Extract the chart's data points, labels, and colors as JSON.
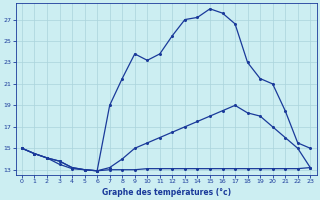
{
  "title": "Graphe des températures (°c)",
  "bg_color": "#cceef2",
  "grid_color": "#aad4dc",
  "line_color": "#1a3a9a",
  "xlim": [
    -0.5,
    23.5
  ],
  "ylim": [
    12.5,
    28.5
  ],
  "yticks": [
    13,
    15,
    17,
    19,
    21,
    23,
    25,
    27
  ],
  "xticks": [
    0,
    1,
    2,
    3,
    4,
    5,
    6,
    7,
    8,
    9,
    10,
    11,
    12,
    13,
    14,
    15,
    16,
    17,
    18,
    19,
    20,
    21,
    22,
    23
  ],
  "line1_x": [
    0,
    1,
    2,
    3,
    4,
    5,
    6,
    7,
    8,
    9,
    10,
    11,
    12,
    13,
    14,
    15,
    16,
    17,
    18,
    19,
    20,
    21,
    22,
    23
  ],
  "line1_y": [
    15.0,
    14.5,
    14.1,
    13.8,
    13.2,
    13.0,
    12.9,
    13.0,
    13.0,
    13.0,
    13.1,
    13.1,
    13.1,
    13.1,
    13.1,
    13.1,
    13.1,
    13.1,
    13.1,
    13.1,
    13.1,
    13.1,
    13.1,
    13.2
  ],
  "line2_x": [
    0,
    1,
    2,
    3,
    4,
    5,
    6,
    7,
    8,
    9,
    10,
    11,
    12,
    13,
    14,
    15,
    16,
    17,
    18,
    19,
    20,
    21,
    22,
    23
  ],
  "line2_y": [
    15.0,
    14.5,
    14.1,
    13.8,
    13.2,
    13.0,
    12.9,
    13.2,
    14.0,
    15.0,
    15.5,
    16.0,
    16.5,
    17.0,
    17.5,
    18.0,
    18.5,
    19.0,
    18.3,
    18.0,
    17.0,
    16.0,
    15.0,
    13.2
  ],
  "line3_x": [
    0,
    1,
    2,
    3,
    4,
    5,
    6,
    7,
    8,
    9,
    10,
    11,
    12,
    13,
    14,
    15,
    16,
    17,
    18,
    19,
    20,
    21,
    22,
    23
  ],
  "line3_y": [
    15.0,
    14.5,
    14.1,
    13.5,
    13.1,
    13.0,
    12.9,
    19.0,
    21.5,
    23.8,
    23.2,
    23.8,
    25.5,
    27.0,
    27.2,
    28.0,
    27.6,
    26.6,
    23.0,
    21.5,
    21.0,
    18.5,
    15.5,
    15.0
  ]
}
